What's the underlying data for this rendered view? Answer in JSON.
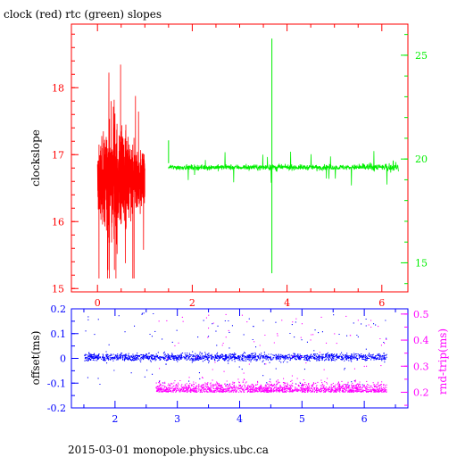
{
  "title": "clock (red) rtc (green) slopes",
  "footer": "2015-03-01 monopole.physics.ubc.ca",
  "colors": {
    "red": "#ff0000",
    "green": "#00ee00",
    "blue": "#0000ff",
    "magenta": "#ff00ff",
    "black": "#000000"
  },
  "chart_data": [
    {
      "type": "line",
      "title": "clock (red) rtc (green) slopes",
      "xlim": [
        -0.55,
        6.55
      ],
      "xticks": [
        0,
        2,
        4,
        6
      ],
      "x_tick_labels": [
        "0",
        "2",
        "4",
        "6"
      ],
      "ylabel": "clockslope",
      "ylim": [
        14.95,
        18.95
      ],
      "yticks": [
        15,
        16,
        17,
        18
      ],
      "y_tick_labels": [
        "15",
        "16",
        "17",
        "18"
      ],
      "y2lim": [
        13.6,
        26.5
      ],
      "y2ticks": [
        15,
        20,
        25
      ],
      "y2_tick_labels": [
        "15",
        "20",
        "25"
      ],
      "grid": false,
      "series": [
        {
          "color": "red",
          "axis": "left",
          "x": [
            0.0,
            1.0
          ],
          "mean": 16.6,
          "spread_min": 15.15,
          "spread_max": 18.45
        },
        {
          "color": "green",
          "axis": "right",
          "x": [
            1.5,
            6.35
          ],
          "mean": 19.6,
          "spread_min": 18.5,
          "spread_max": 21.0,
          "spikes": [
            {
              "x": 3.68,
              "y_min": 14.5,
              "y_max": 25.8
            },
            {
              "x": 1.5,
              "y_min": 19.8,
              "y_max": 20.9
            }
          ]
        }
      ]
    },
    {
      "type": "scatter",
      "xlim": [
        1.3,
        6.7
      ],
      "xticks": [
        2,
        3,
        4,
        5,
        6
      ],
      "x_tick_labels": [
        "2",
        "3",
        "4",
        "5",
        "6"
      ],
      "ylabel": "offset(ms)",
      "ylim": [
        -0.2,
        0.2
      ],
      "yticks": [
        -0.2,
        -0.1,
        0,
        0.1,
        0.2
      ],
      "y_tick_labels": [
        "-0.2",
        "-0.1",
        "0",
        "0.1",
        "0.2"
      ],
      "y2label": "rnd-trip(ms)",
      "y2lim": [
        0.14,
        0.52
      ],
      "y2ticks": [
        0.2,
        0.3,
        0.4,
        0.5
      ],
      "y2_tick_labels": [
        "0.2",
        "0.3",
        "0.4",
        "0.5"
      ],
      "grid": false,
      "series": [
        {
          "color": "blue",
          "axis": "left",
          "x": [
            1.5,
            6.35
          ],
          "mean": 0.005,
          "spread_min": -0.14,
          "spread_max": 0.2
        },
        {
          "color": "magenta",
          "axis": "right",
          "x": [
            2.65,
            6.35
          ],
          "mean": 0.22,
          "spread_min": 0.19,
          "spread_max": 0.5
        }
      ]
    }
  ]
}
